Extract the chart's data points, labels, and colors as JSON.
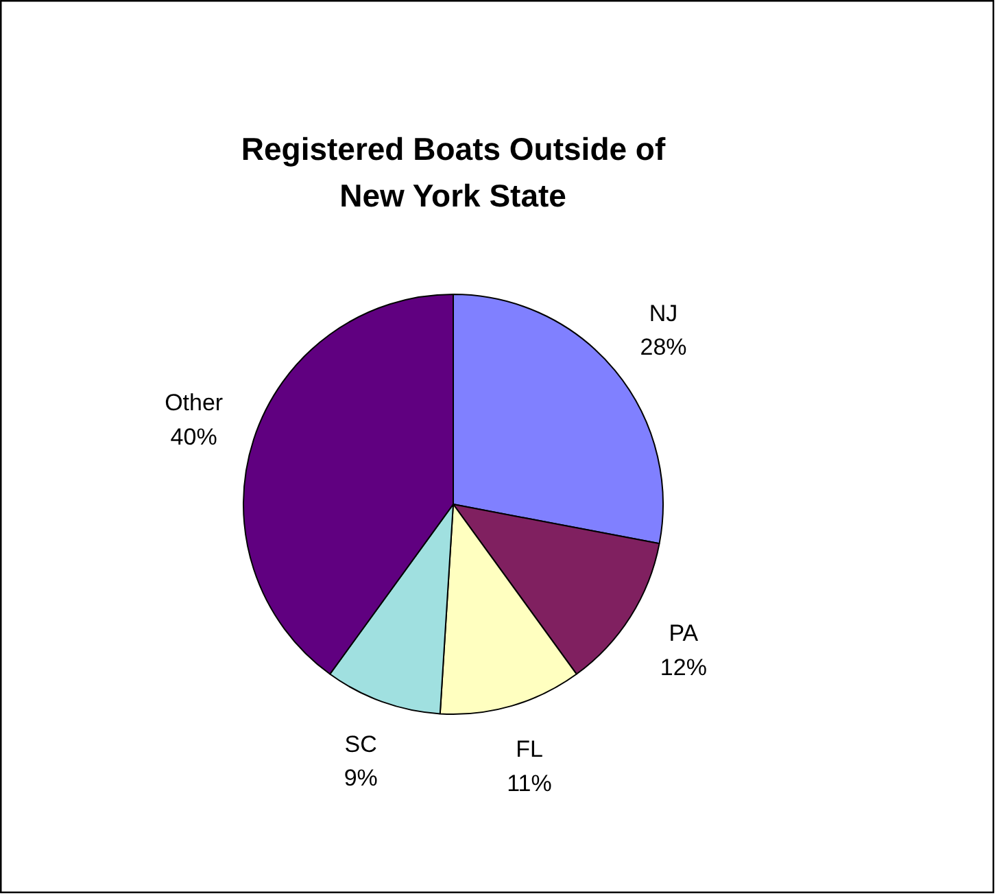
{
  "chart_data": {
    "type": "pie",
    "title": "Registered Boats Outside of New York State",
    "categories": [
      "NJ",
      "PA",
      "FL",
      "SC",
      "Other"
    ],
    "values": [
      28,
      12,
      11,
      9,
      40
    ],
    "value_labels": [
      "28%",
      "12%",
      "11%",
      "9%",
      "40%"
    ],
    "colors": [
      "#8080ff",
      "#802060",
      "#ffffc0",
      "#a0e0e0",
      "#600080"
    ]
  }
}
